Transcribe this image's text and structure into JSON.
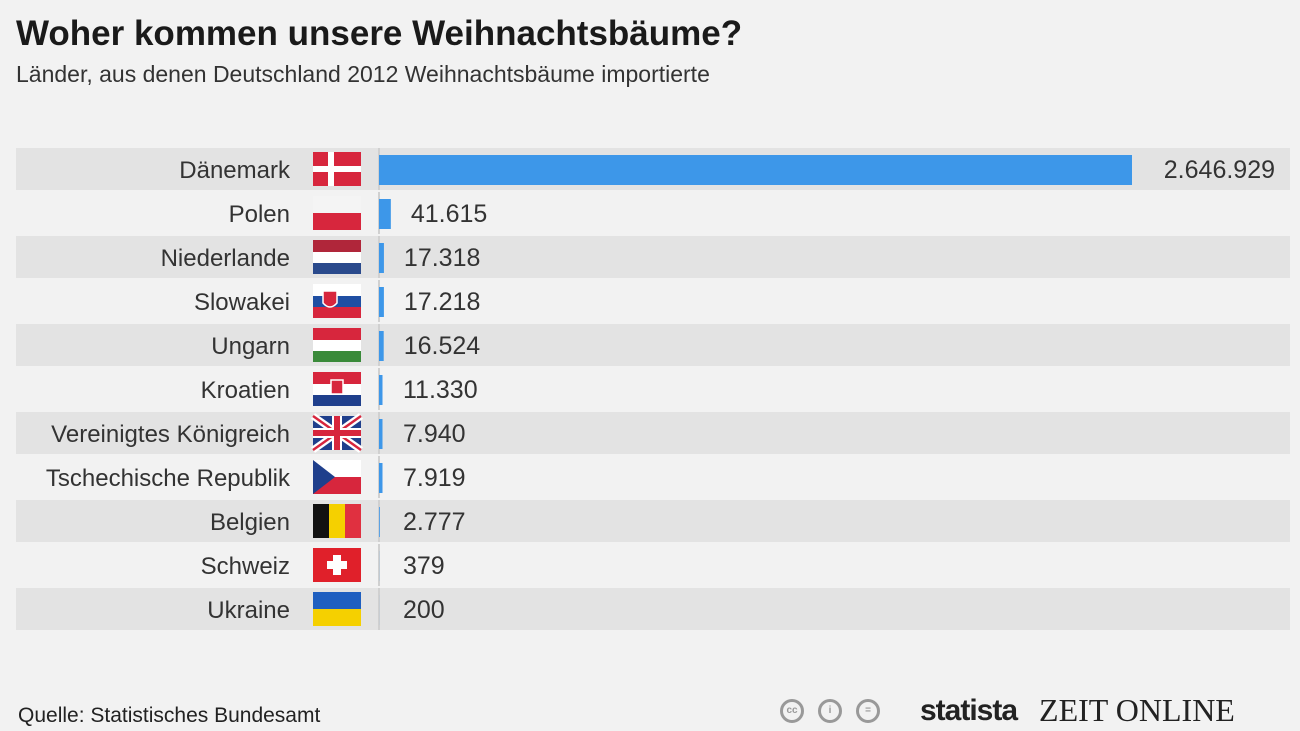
{
  "chart_data": {
    "type": "bar",
    "title": "Woher kommen unsere Weihnachtsbäume?",
    "subtitle": "Länder, aus denen Deutschland 2012 Weihnachtsbäume importierte",
    "xlabel": "",
    "ylabel": "",
    "categories": [
      "Dänemark",
      "Polen",
      "Niederlande",
      "Slowakei",
      "Ungarn",
      "Kroatien",
      "Vereinigtes Königreich",
      "Tschechische Republik",
      "Belgien",
      "Schweiz",
      "Ukraine"
    ],
    "values": [
      2646929,
      41615,
      17318,
      17218,
      16524,
      11330,
      7940,
      7919,
      2777,
      379,
      200
    ],
    "value_labels": [
      "2.646.929",
      "41.615",
      "17.318",
      "17.218",
      "16.524",
      "11.330",
      "7.940",
      "7.919",
      "2.777",
      "379",
      "200"
    ],
    "flags": [
      "dk",
      "pl",
      "nl",
      "sk",
      "hu",
      "hr",
      "gb",
      "cz",
      "be",
      "ch",
      "ua"
    ],
    "bar_color": "#3d97e9",
    "xlim": [
      0,
      2646929
    ],
    "grid": false,
    "legend": "none"
  },
  "source": "Quelle: Statistisches Bundesamt",
  "logos": {
    "cc": [
      "cc",
      "i",
      "="
    ],
    "statista": "statista",
    "zeit": "ZEIT ONLINE"
  }
}
